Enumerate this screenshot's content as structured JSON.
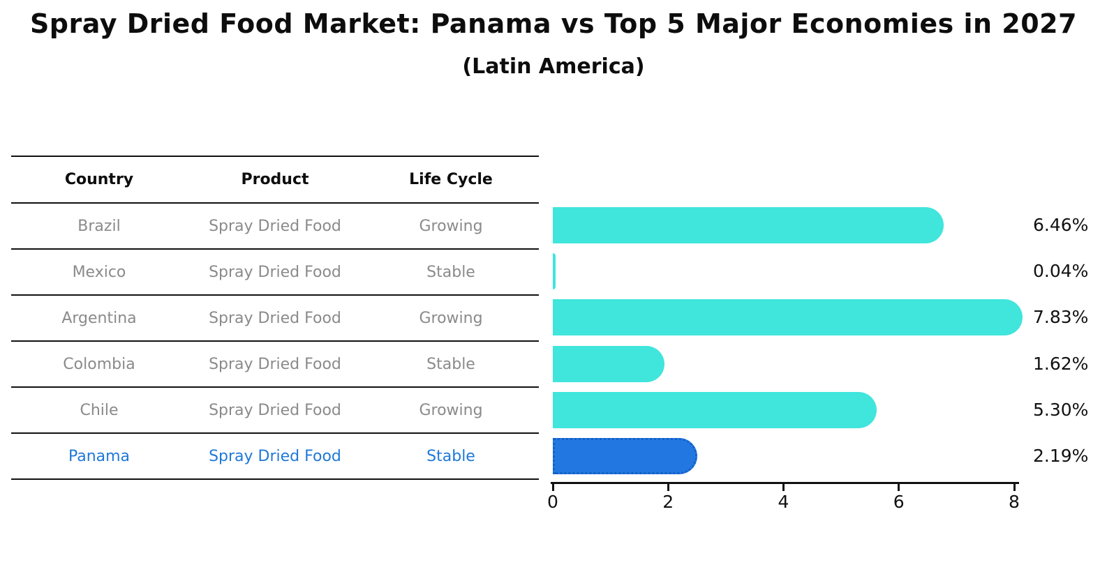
{
  "title": "Spray Dried Food Market: Panama vs Top 5 Major Economies in 2027",
  "subtitle": "(Latin America)",
  "table": {
    "headers": {
      "country": "Country",
      "product": "Product",
      "life_cycle": "Life Cycle"
    },
    "rows": [
      {
        "country": "Brazil",
        "product": "Spray Dried Food",
        "life_cycle": "Growing",
        "highlight": false
      },
      {
        "country": "Mexico",
        "product": "Spray Dried Food",
        "life_cycle": "Stable",
        "highlight": false
      },
      {
        "country": "Argentina",
        "product": "Spray Dried Food",
        "life_cycle": "Growing",
        "highlight": false
      },
      {
        "country": "Colombia",
        "product": "Spray Dried Food",
        "life_cycle": "Stable",
        "highlight": false
      },
      {
        "country": "Chile",
        "product": "Spray Dried Food",
        "life_cycle": "Growing",
        "highlight": false
      },
      {
        "country": "Panama",
        "product": "Spray Dried Food",
        "life_cycle": "Stable",
        "highlight": true
      }
    ]
  },
  "chart_data": {
    "type": "bar",
    "orientation": "horizontal",
    "categories": [
      "Brazil",
      "Mexico",
      "Argentina",
      "Colombia",
      "Chile",
      "Panama"
    ],
    "values": [
      6.46,
      0.04,
      7.83,
      1.62,
      5.3,
      2.19
    ],
    "value_labels": [
      "6.46%",
      "0.04%",
      "7.83%",
      "1.62%",
      "5.30%",
      "2.19%"
    ],
    "highlight_index": 5,
    "xlim": [
      0,
      8
    ],
    "xticks": [
      "0",
      "2",
      "4",
      "6",
      "8"
    ],
    "grid": false,
    "legend": false
  },
  "colors": {
    "bar": "#40e5dc",
    "highlight_bar": "#2277e0",
    "highlight_border": "#1560c8",
    "highlight_text": "#1f78d9",
    "text": "#0d0d0d",
    "muted_text": "#8a8a8a"
  }
}
